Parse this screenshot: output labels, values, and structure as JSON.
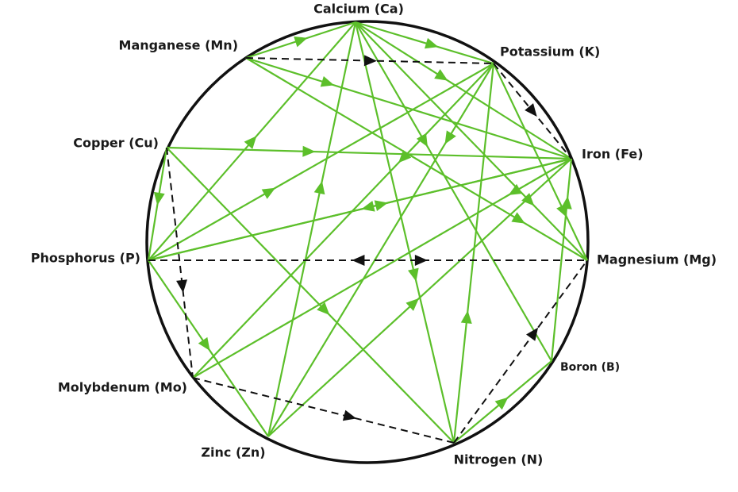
{
  "nodes": [
    {
      "label": "Calcium (Ca)"
    },
    {
      "label": "Manganese (Mn)"
    },
    {
      "label": "Potassium (K)"
    },
    {
      "label": "Copper (Cu)"
    },
    {
      "label": "Iron (Fe)"
    },
    {
      "label": "Phosphorus (P)"
    },
    {
      "label": "Magnesium (Mg)"
    },
    {
      "label": "Molybdenum (Mo)"
    },
    {
      "label": "Boron (B)"
    },
    {
      "label": "Zinc (Zn)"
    },
    {
      "label": "Nitrogen (N)"
    }
  ]
}
